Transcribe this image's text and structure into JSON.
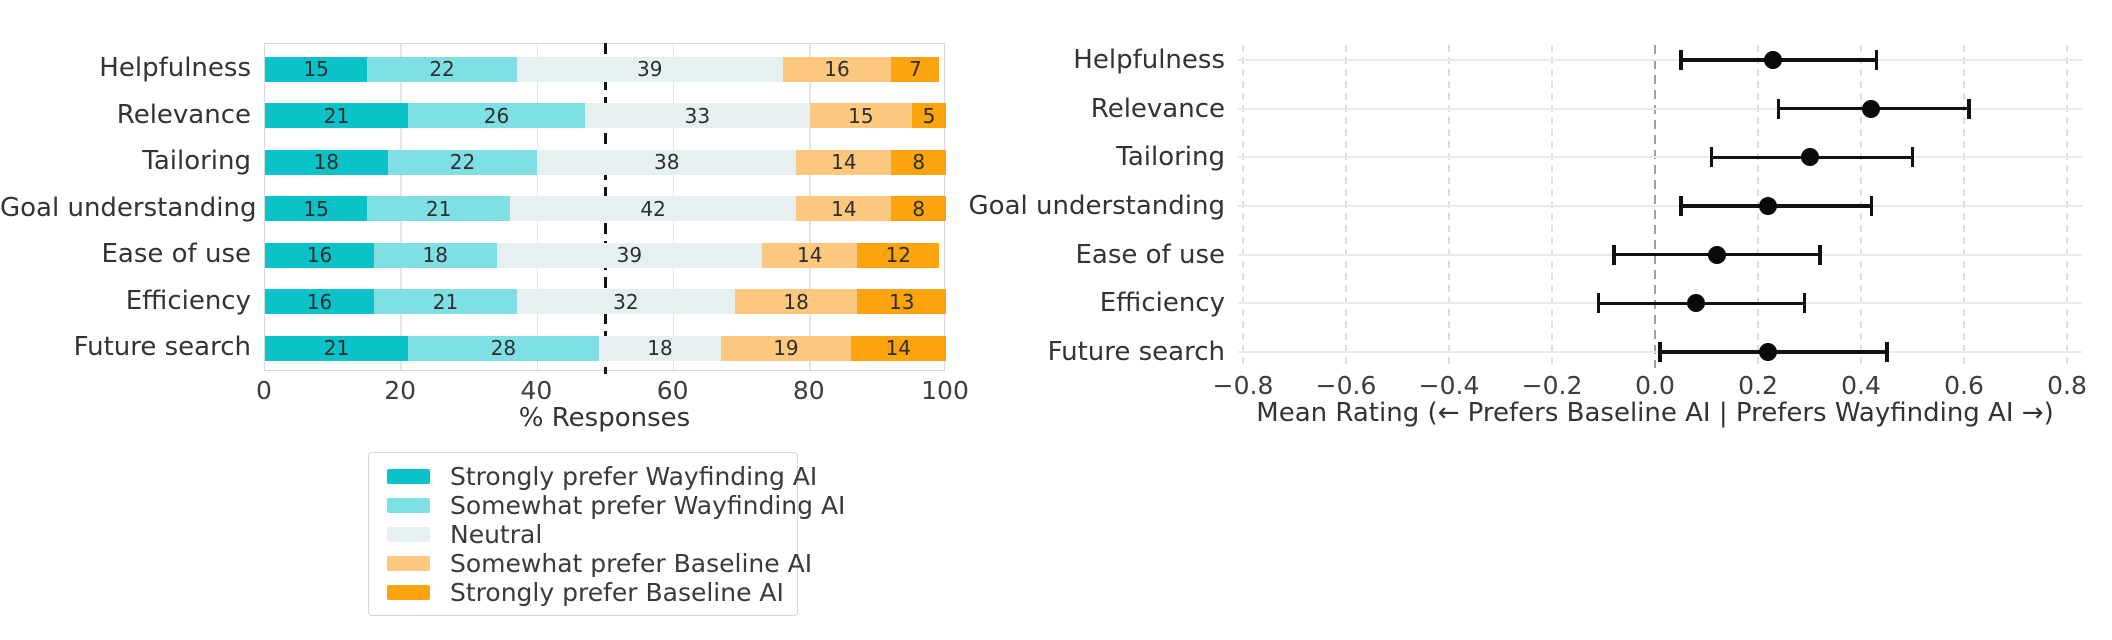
{
  "figure": {
    "colors": {
      "text": "#333333",
      "tick_text": "#3d3d3d",
      "frame": "#d5d9db",
      "grid_left": "#e2e6e8",
      "grid_right_horizontal": "#e9ebec",
      "grid_right_vertical": "#dcdfe1",
      "zero_line": "#9aa0a6",
      "reference_line": "#151515",
      "error_bar": "#111111"
    }
  },
  "chart_data": [
    {
      "type": "bar",
      "subtype": "horizontal-stacked-likert",
      "categories": [
        "Helpfulness",
        "Relevance",
        "Tailoring",
        "Goal understanding",
        "Ease of use",
        "Efficiency",
        "Future search"
      ],
      "series": [
        {
          "name": "Strongly prefer Wayfinding AI",
          "color": "#0cc2c9",
          "values": [
            15,
            21,
            18,
            15,
            16,
            16,
            21
          ]
        },
        {
          "name": "Somewhat prefer Wayfinding AI",
          "color": "#7ee0e4",
          "values": [
            22,
            26,
            22,
            21,
            18,
            21,
            28
          ]
        },
        {
          "name": "Neutral",
          "color": "#e6f0f2",
          "values": [
            39,
            33,
            38,
            42,
            39,
            32,
            18
          ]
        },
        {
          "name": "Somewhat prefer Baseline AI",
          "color": "#fbc87d",
          "values": [
            16,
            15,
            14,
            14,
            14,
            18,
            19
          ]
        },
        {
          "name": "Strongly prefer Baseline AI",
          "color": "#fca40d",
          "values": [
            7,
            5,
            8,
            8,
            12,
            13,
            14
          ]
        }
      ],
      "xlabel": "% Responses",
      "x_ticks": [
        0,
        20,
        40,
        60,
        80,
        100
      ],
      "x_tick_labels": [
        "0",
        "20",
        "40",
        "60",
        "80",
        "100"
      ],
      "xlim": [
        0,
        100
      ],
      "reference_line_x": 50,
      "grid": "vertical",
      "legend_position": "below-left"
    },
    {
      "type": "scatter",
      "subtype": "dot-with-error-bars",
      "categories": [
        "Helpfulness",
        "Relevance",
        "Tailoring",
        "Goal understanding",
        "Ease of use",
        "Efficiency",
        "Future search"
      ],
      "means": [
        0.23,
        0.42,
        0.3,
        0.22,
        0.12,
        0.08,
        0.22
      ],
      "ci_low": [
        0.05,
        0.24,
        0.11,
        0.05,
        -0.08,
        -0.11,
        0.01
      ],
      "ci_high": [
        0.43,
        0.61,
        0.5,
        0.42,
        0.32,
        0.29,
        0.45
      ],
      "xlabel": "Mean Rating (← Prefers Baseline AI | Prefers Wayfinding AI →)",
      "x_ticks": [
        -0.8,
        -0.6,
        -0.4,
        -0.2,
        0.0,
        0.2,
        0.4,
        0.6,
        0.8
      ],
      "x_tick_labels": [
        "−0.8",
        "−0.6",
        "−0.4",
        "−0.2",
        "0.0",
        "0.2",
        "0.4",
        "0.6",
        "0.8"
      ],
      "xlim": [
        -0.9,
        0.83
      ],
      "reference_line_x": 0.0,
      "grid": "both",
      "marker": "black-dot",
      "error_bar_caps": true
    }
  ]
}
